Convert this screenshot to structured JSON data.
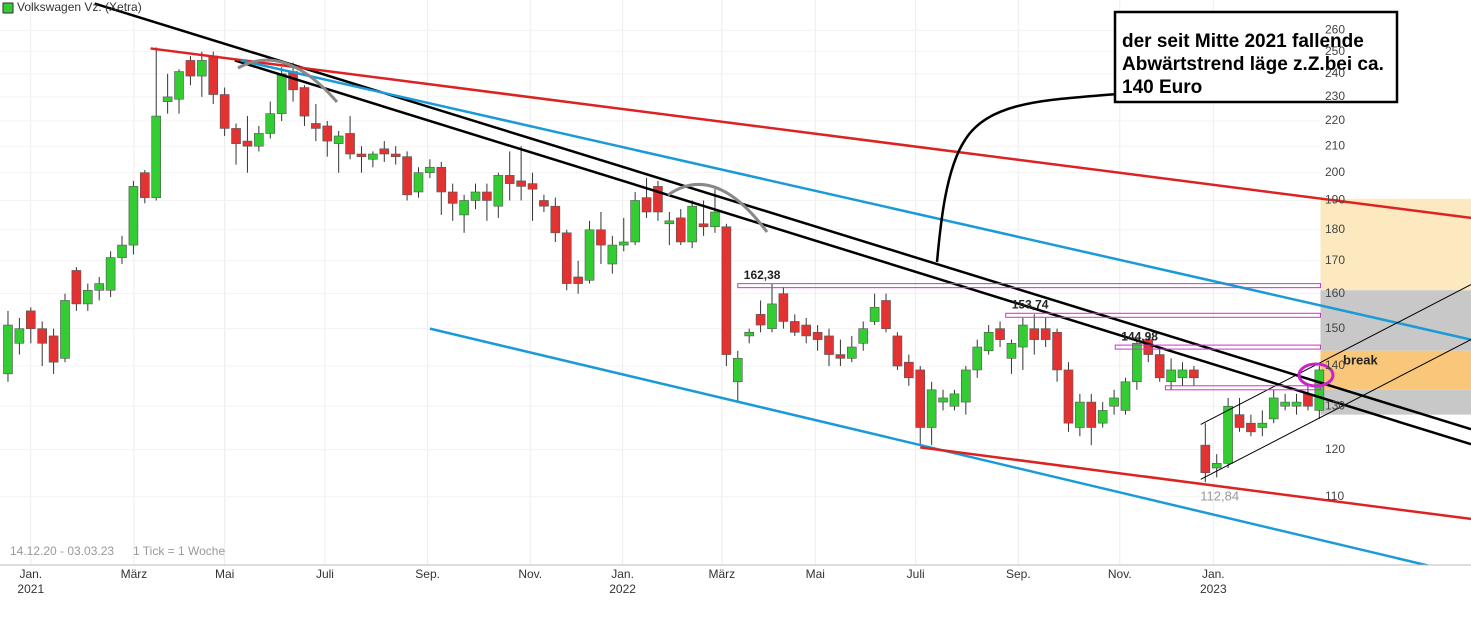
{
  "chart_data": {
    "type": "candlestick",
    "title": "Volkswagen Vz. (Xetra)",
    "log_scale": true,
    "grid": true,
    "ylim": [
      97,
      275
    ],
    "yticks": [
      110,
      120,
      130,
      140,
      150,
      160,
      170,
      180,
      190,
      200,
      210,
      220,
      230,
      240,
      250,
      260
    ],
    "xlim": [
      -0.7,
      128.3
    ],
    "xticks": [
      {
        "value": 2.0,
        "label": "Jan."
      },
      {
        "value": 11.05,
        "label": "März"
      },
      {
        "value": 19.0,
        "label": "Mai"
      },
      {
        "value": 27.8,
        "label": "Juli"
      },
      {
        "value": 36.8,
        "label": "Sep."
      },
      {
        "value": 45.8,
        "label": "Nov."
      },
      {
        "value": 53.9,
        "label": "Jan."
      },
      {
        "value": 62.6,
        "label": "März"
      },
      {
        "value": 70.8,
        "label": "Mai"
      },
      {
        "value": 79.6,
        "label": "Juli"
      },
      {
        "value": 88.6,
        "label": "Sep."
      },
      {
        "value": 97.5,
        "label": "Nov."
      },
      {
        "value": 105.7,
        "label": "Jan."
      }
    ],
    "xtick_years": [
      {
        "value": 2.0,
        "label": "2021"
      },
      {
        "value": 53.9,
        "label": "2022"
      },
      {
        "value": 105.7,
        "label": "2023"
      }
    ],
    "series": [
      {
        "name": "Volkswagen Vz. (Xetra)",
        "up_color": "#33cc33",
        "down_color": "#e23232",
        "open": [
          138,
          146,
          155,
          150,
          148,
          142,
          167,
          157,
          161,
          161,
          171,
          175,
          200,
          191,
          228,
          229,
          246,
          239,
          248,
          231,
          217,
          212,
          210,
          215,
          223,
          241,
          234,
          219,
          218,
          211,
          215,
          207,
          205,
          209,
          207,
          206,
          193,
          200,
          202,
          193,
          185,
          190,
          193,
          188,
          199,
          197,
          196,
          190,
          188,
          179,
          165,
          164,
          180,
          169,
          175,
          176,
          191,
          195,
          182,
          184,
          176,
          182,
          181,
          181,
          136,
          148,
          154,
          150,
          160,
          152,
          151,
          149,
          148,
          143,
          142,
          146,
          152,
          158,
          148,
          141,
          139,
          125,
          131,
          130,
          131,
          139,
          144,
          150,
          142,
          145,
          150,
          150,
          149,
          139,
          125,
          131,
          126,
          130,
          129,
          136,
          147,
          143,
          136,
          137,
          139,
          121,
          116,
          117,
          128,
          126,
          125,
          127,
          130,
          130,
          133,
          129
        ],
        "high": [
          155,
          153,
          156,
          152,
          150,
          160,
          168,
          163,
          165,
          173,
          178,
          197,
          201,
          252,
          240,
          242,
          248,
          250,
          250,
          234,
          219,
          222,
          218,
          228,
          243,
          245,
          235,
          227,
          220,
          216,
          222,
          210,
          208,
          212,
          210,
          208,
          202,
          205,
          204,
          196,
          192,
          196,
          196,
          200,
          208,
          210,
          200,
          192,
          191,
          180,
          170,
          183,
          186,
          178,
          184,
          193,
          198,
          197,
          186,
          187,
          190,
          190,
          194,
          182,
          144,
          150,
          158,
          163,
          162,
          154,
          153,
          151,
          150,
          147,
          148,
          152,
          160,
          160,
          149,
          143,
          140,
          136,
          134,
          134,
          140,
          147,
          151,
          152,
          147,
          153,
          154,
          153,
          150,
          141,
          133,
          133,
          131,
          134,
          137,
          147,
          148,
          145,
          142,
          141,
          140,
          126,
          119,
          132,
          132,
          128,
          129,
          134,
          133,
          133,
          135,
          140
        ],
        "low": [
          136,
          143,
          146,
          140,
          138,
          141,
          155,
          155,
          158,
          159,
          169,
          172,
          189,
          190,
          223,
          223,
          235,
          230,
          227,
          214,
          203,
          200,
          208,
          213,
          220,
          228,
          218,
          212,
          206,
          200,
          205,
          200,
          202,
          204,
          203,
          190,
          191,
          198,
          185,
          183,
          179,
          187,
          183,
          184,
          190,
          190,
          183,
          186,
          176,
          161,
          160,
          163,
          169,
          166,
          173,
          175,
          184,
          183,
          175,
          175,
          174,
          178,
          179,
          140,
          131,
          146,
          149,
          149,
          150,
          148,
          146,
          144,
          140,
          140,
          141,
          144,
          151,
          149,
          139,
          135,
          121,
          121,
          129,
          129,
          128,
          137,
          143,
          145,
          138,
          139,
          143,
          145,
          136,
          124,
          123,
          121,
          125,
          128,
          128,
          134,
          141,
          136,
          134,
          135,
          135,
          113,
          114,
          116,
          124,
          123,
          123,
          126,
          129,
          128,
          129,
          127
        ],
        "close": [
          151,
          150,
          150,
          146,
          141,
          158,
          157,
          161,
          163,
          171,
          175,
          195,
          191,
          222,
          230,
          241,
          239,
          246,
          231,
          217,
          211,
          210,
          215,
          223,
          240,
          233,
          222,
          217,
          212,
          214,
          207,
          206,
          207,
          207,
          206,
          192,
          200,
          202,
          193,
          189,
          190,
          193,
          190,
          199,
          196,
          195,
          194,
          188,
          179,
          163,
          163,
          180,
          175,
          175,
          176,
          190,
          186,
          186,
          183,
          176,
          188,
          181,
          186,
          143,
          142,
          149,
          151,
          157,
          152,
          149,
          148,
          147,
          143,
          142,
          145,
          150,
          156,
          150,
          140,
          137,
          125,
          134,
          132,
          133,
          139,
          145,
          149,
          147,
          146,
          151,
          147,
          147,
          139,
          126,
          131,
          125,
          129,
          132,
          136,
          146,
          143,
          137,
          139,
          139,
          137,
          115,
          117,
          130,
          125,
          124,
          126,
          132,
          131,
          131,
          130,
          139
        ]
      }
    ],
    "trendlines": [
      {
        "color": "#000000",
        "points": [
          [
            7.6,
            273.2
          ],
          [
            128.3,
            124.6
          ]
        ]
      },
      {
        "color": "#000000",
        "points": [
          [
            19.9,
            246.0
          ],
          [
            128.3,
            121.2
          ]
        ]
      },
      {
        "color": "#dd2222",
        "points": [
          [
            12.5,
            251.5
          ],
          [
            128.3,
            184.0
          ]
        ]
      },
      {
        "color": "#1a9ad6",
        "points": [
          [
            20.4,
            246.0
          ],
          [
            128.3,
            147.0
          ]
        ]
      },
      {
        "color": "#1a9ad6",
        "points": [
          [
            37.0,
            150.0
          ],
          [
            128.3,
            95.1
          ]
        ]
      },
      {
        "color": "#dd2222",
        "points": [
          [
            80.0,
            120.5
          ],
          [
            128.3,
            105.6
          ]
        ]
      },
      {
        "color": "#000000",
        "points": [
          [
            104.6,
            113.6
          ],
          [
            128.3,
            147.0
          ]
        ]
      },
      {
        "color": "#000000",
        "points": [
          [
            104.6,
            125.7
          ],
          [
            128.3,
            162.7
          ]
        ]
      }
    ],
    "zone_start": 115.1,
    "zones": [
      {
        "color": "#fde9bf",
        "from": 161,
        "to": 190.6
      },
      {
        "color": "#c8c8c8",
        "from": 144,
        "to": 161
      },
      {
        "color": "#f9c77a",
        "from": 134,
        "to": 144
      },
      {
        "color": "#c8c8c8",
        "from": 128,
        "to": 134
      }
    ],
    "levels": [
      {
        "value": 162.38,
        "label": "162,38",
        "from": 64.0
      },
      {
        "value": 153.74,
        "label": "153,74",
        "from": 87.5
      },
      {
        "value": 144.98,
        "label": "144,98",
        "from": 97.1
      },
      {
        "value": 134.5,
        "from": 101.5
      }
    ],
    "low_label": {
      "value": 112.84,
      "label": "112,84",
      "x": 105
    },
    "break_label": "break",
    "annotation": {
      "lines": [
        "der seit Mitte 2021 fallende",
        "Abwärtstrend läge z.Z.bei ca.",
        "140 Euro"
      ]
    },
    "footer": {
      "range": "14.12.20 - 03.03.23",
      "tick": "1 Tick = 1 Woche"
    }
  }
}
